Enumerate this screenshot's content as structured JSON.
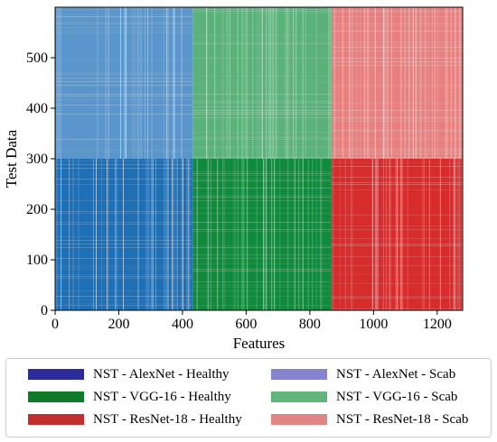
{
  "chart_data": {
    "type": "heatmap",
    "xlabel": "Features",
    "ylabel": "Test Data",
    "xlim": [
      0,
      1280
    ],
    "ylim": [
      0,
      600
    ],
    "xticks": [
      0,
      200,
      400,
      600,
      800,
      1000,
      1200
    ],
    "yticks": [
      0,
      100,
      200,
      300,
      400,
      500
    ],
    "grid": false,
    "legend_position": "bottom",
    "blocks": [
      {
        "name": "NST - AlexNet - Healthy",
        "x": [
          0,
          432
        ],
        "y": [
          0,
          300
        ],
        "color": "#1f6fb5",
        "light": "#7fb3e0"
      },
      {
        "name": "NST - AlexNet - Scab",
        "x": [
          0,
          432
        ],
        "y": [
          300,
          600
        ],
        "color": "#5a96cc",
        "light": "#c2d8ee"
      },
      {
        "name": "NST - VGG-16 - Healthy",
        "x": [
          432,
          868
        ],
        "y": [
          0,
          300
        ],
        "color": "#108a3c",
        "light": "#7dcf95"
      },
      {
        "name": "NST - VGG-16 - Scab",
        "x": [
          432,
          868
        ],
        "y": [
          300,
          600
        ],
        "color": "#5ab27a",
        "light": "#c5e6cf"
      },
      {
        "name": "NST - ResNet-18 - Healthy",
        "x": [
          868,
          1280
        ],
        "y": [
          0,
          300
        ],
        "color": "#d62c2c",
        "light": "#f29b9b"
      },
      {
        "name": "NST - ResNet-18 - Scab",
        "x": [
          868,
          1280
        ],
        "y": [
          300,
          600
        ],
        "color": "#e88080",
        "light": "#f8d0d0"
      }
    ],
    "legend": [
      {
        "label": "NST - AlexNet - Healthy",
        "color": "#2b2b9c"
      },
      {
        "label": "NST - AlexNet - Scab",
        "color": "#8585cf"
      },
      {
        "label": "NST - VGG-16 - Healthy",
        "color": "#0f7a28"
      },
      {
        "label": "NST - VGG-16 - Scab",
        "color": "#62b57a"
      },
      {
        "label": "NST - ResNet-18 - Healthy",
        "color": "#c0302e"
      },
      {
        "label": "NST - ResNet-18 - Scab",
        "color": "#e08585"
      }
    ]
  }
}
